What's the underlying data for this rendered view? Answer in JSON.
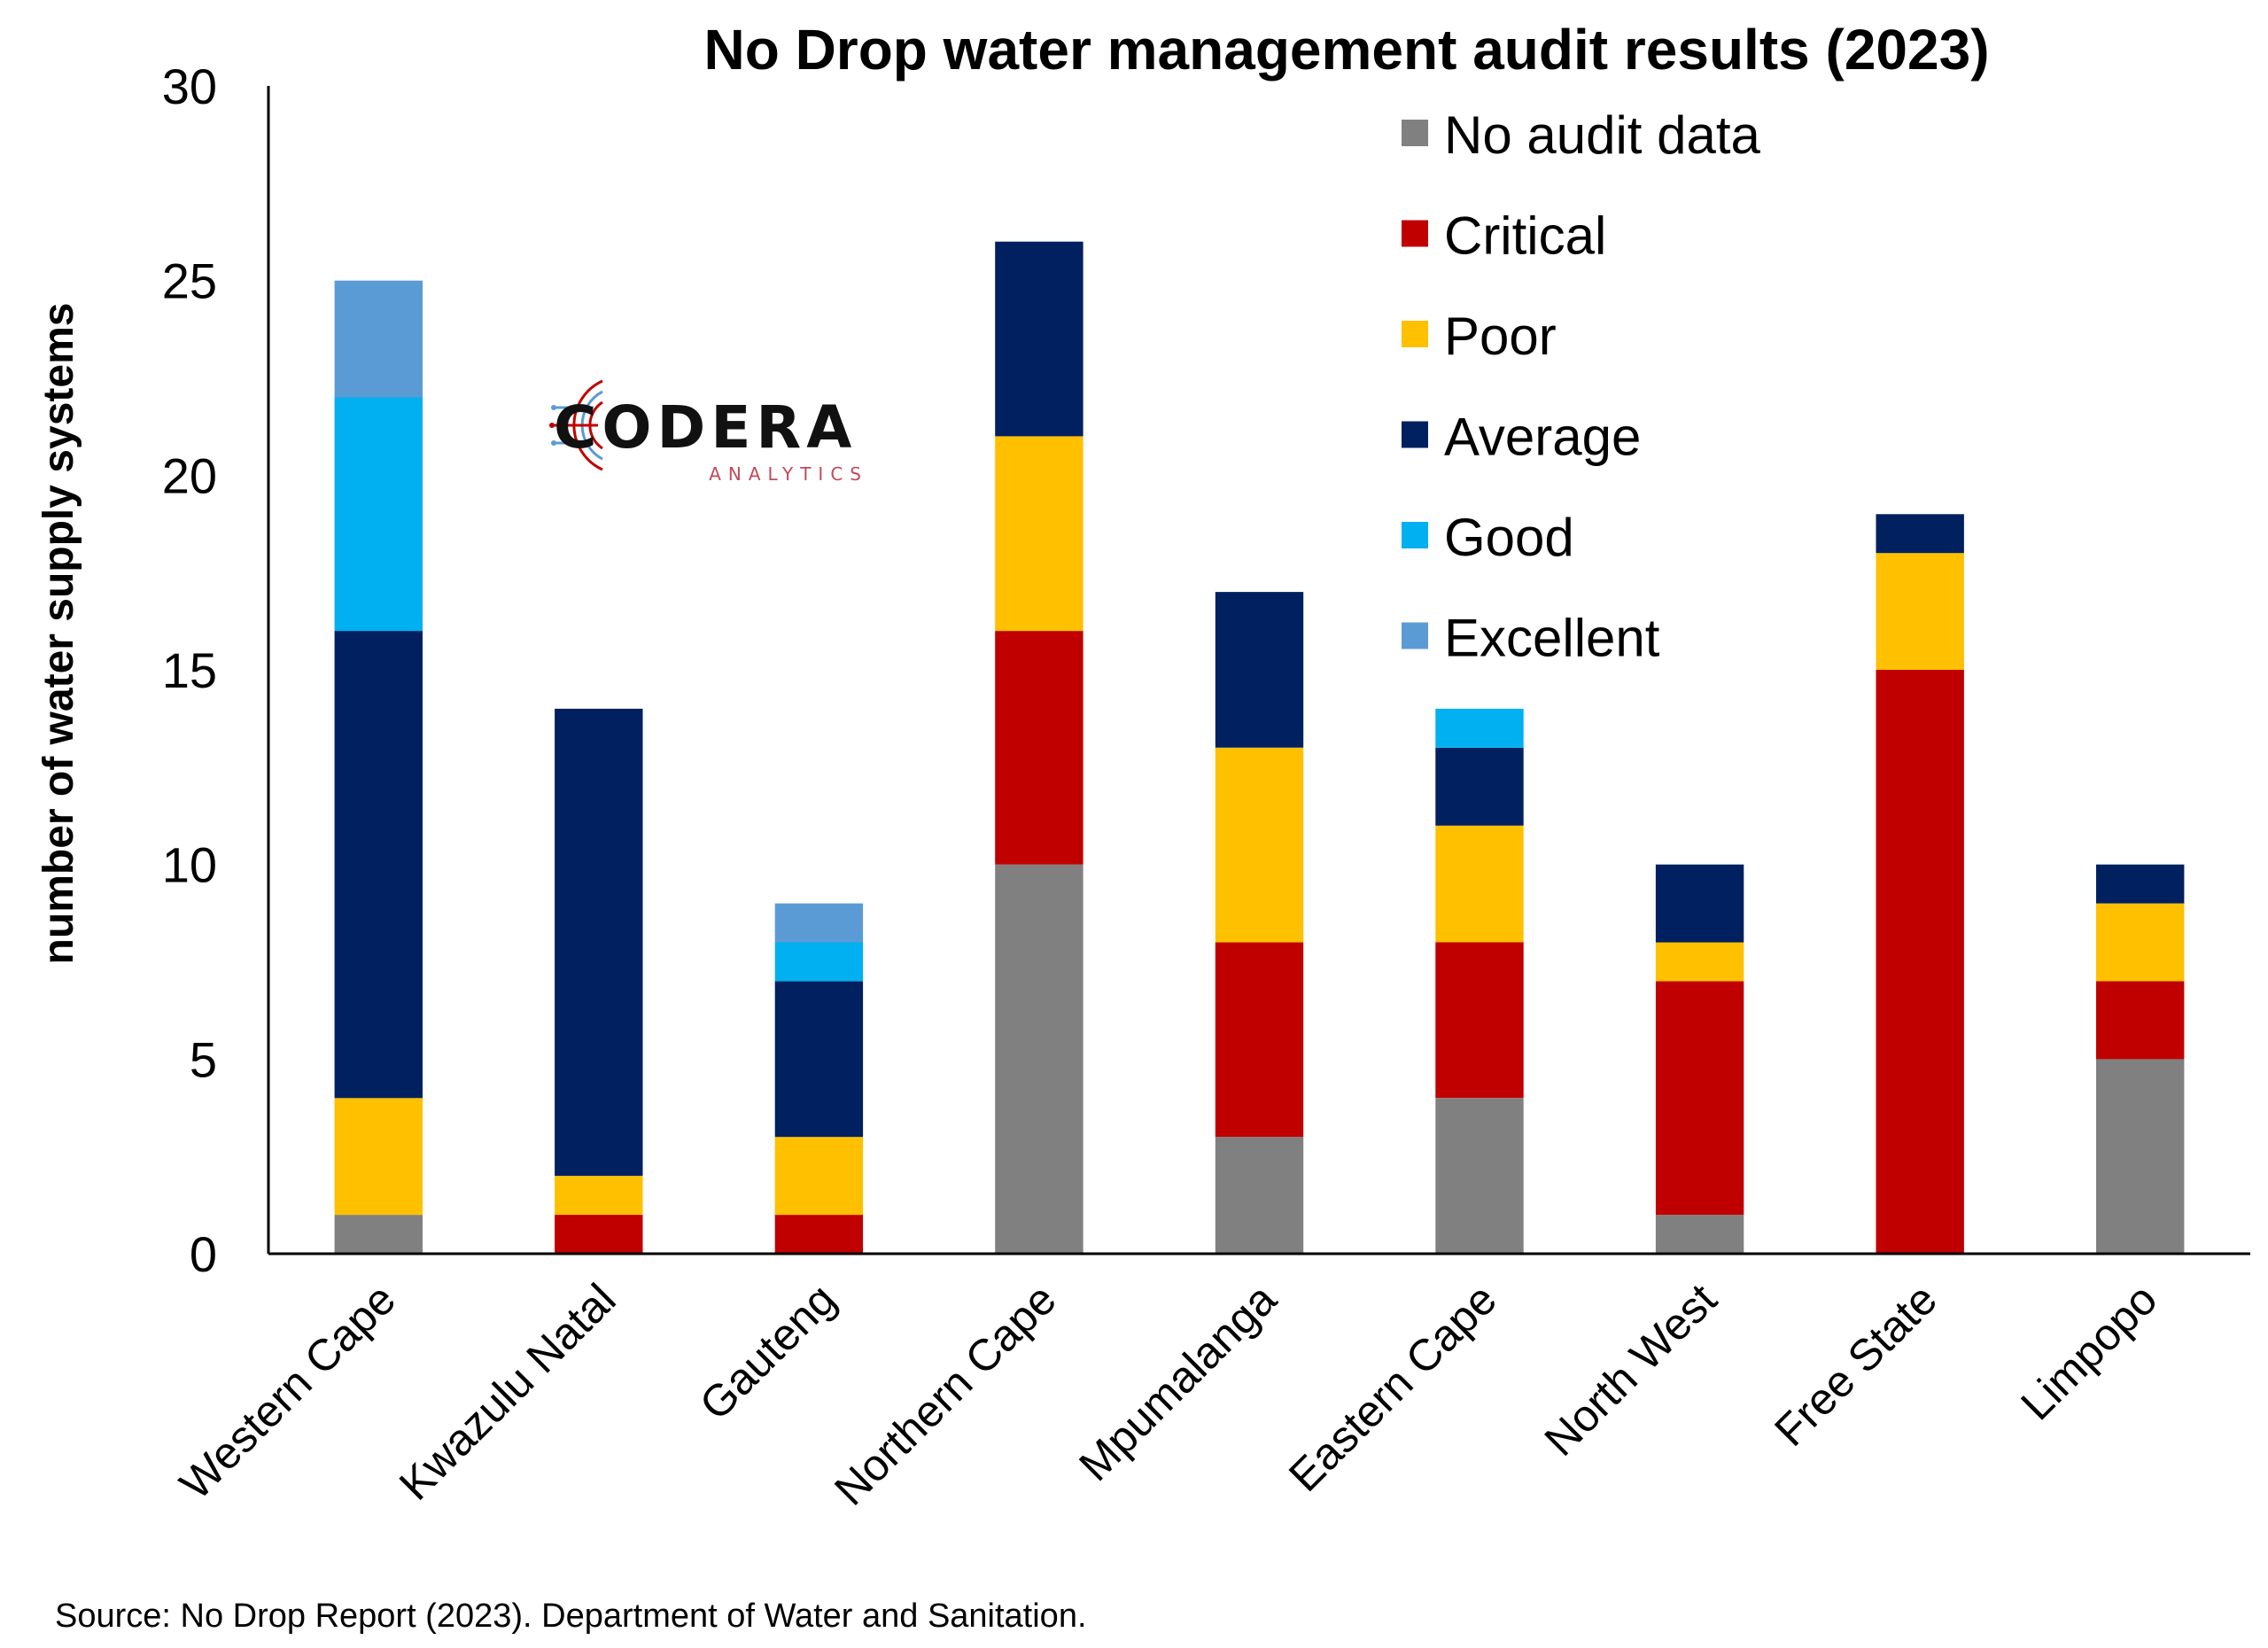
{
  "chart_data": {
    "type": "bar",
    "stacked": true,
    "title": "No Drop water management audit results (2023)",
    "ylabel": "number of water supply systems",
    "xlabel": "",
    "ylim": [
      0,
      30
    ],
    "yticks": [
      0,
      5,
      10,
      15,
      20,
      25,
      30
    ],
    "grid": false,
    "legend_position": "top-right",
    "categories": [
      "Western Cape",
      "Kwazulu Natal",
      "Gauteng",
      "Northern Cape",
      "Mpumalanga",
      "Eastern Cape",
      "North West",
      "Free State",
      "Limpopo"
    ],
    "series": [
      {
        "name": "No audit data",
        "color": "#808080",
        "values": [
          1,
          0,
          0,
          10,
          3,
          4,
          1,
          0,
          5
        ]
      },
      {
        "name": "Critical",
        "color": "#C00000",
        "values": [
          0,
          1,
          1,
          6,
          5,
          4,
          6,
          15,
          2
        ]
      },
      {
        "name": "Poor",
        "color": "#FFC000",
        "values": [
          3,
          1,
          2,
          5,
          5,
          3,
          1,
          3,
          2
        ]
      },
      {
        "name": "Average",
        "color": "#002060",
        "values": [
          12,
          12,
          4,
          5,
          4,
          2,
          2,
          1,
          1
        ]
      },
      {
        "name": "Good",
        "color": "#00B0F0",
        "values": [
          6,
          0,
          1,
          0,
          0,
          1,
          0,
          0,
          0
        ]
      },
      {
        "name": "Excellent",
        "color": "#5B9BD5",
        "values": [
          3,
          0,
          1,
          0,
          0,
          0,
          0,
          0,
          0
        ]
      }
    ],
    "source": "Source: No Drop Report (2023). Department of Water and Sanitation."
  },
  "logo": {
    "name": "CODERA",
    "subtitle": "ANALYTICS"
  }
}
